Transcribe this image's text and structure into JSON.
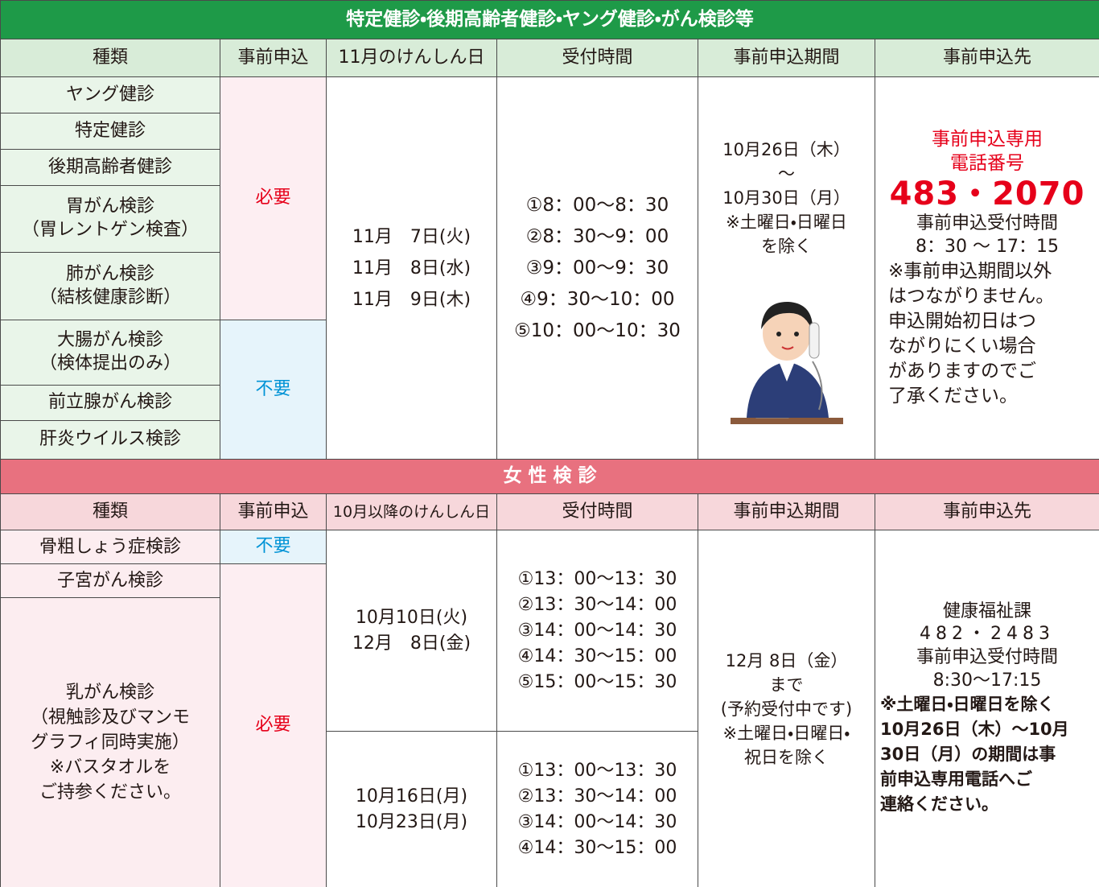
{
  "section1": {
    "title": "特定健診・後期高齢者健診・ヤング健診・がん検診等",
    "headers": [
      "種類",
      "事前申込",
      "11月のけんしん日",
      "受付時間",
      "事前申込期間",
      "事前申込先"
    ],
    "types": [
      [
        "ヤング健診"
      ],
      [
        "特定健診"
      ],
      [
        "後期高齢者健診"
      ],
      [
        "胃がん検診",
        "（胃レントゲン検査）"
      ],
      [
        "肺がん検診",
        "（結核健康診断）"
      ],
      [
        "大腸がん検診",
        "（検体提出のみ）"
      ],
      [
        "前立腺がん検診"
      ],
      [
        "肝炎ウイルス検診"
      ]
    ],
    "required": "必要",
    "not_required": "不要",
    "dates": [
      "11月　7日(火)",
      "11月　8日(水)",
      "11月　9日(木)"
    ],
    "times": [
      "①8：00～8：30",
      "②8：30～9：00",
      "③9：00～9：30",
      "④9：30～10：00",
      "⑤10：00～10：30"
    ],
    "period": [
      "10月26日（木）",
      "～",
      "10月30日（月）",
      "※土曜日・日曜日",
      "を除く"
    ],
    "contact": {
      "label": [
        "事前申込専用",
        "電話番号"
      ],
      "phone": "483・2070",
      "hours_label": "事前申込受付時間",
      "hours": "8：30 ～ 17：15",
      "note": [
        "※事前申込期間以外",
        "はつながりません。",
        "申込開始初日はつ",
        "ながりにくい場合",
        "がありますのでご",
        "了承ください。"
      ]
    }
  },
  "section2": {
    "title": "女 性 検 診",
    "headers": [
      "種類",
      "事前申込",
      "10月以降のけんしん日",
      "受付時間",
      "事前申込期間",
      "事前申込先"
    ],
    "types": [
      [
        "骨粗しょう症検診"
      ],
      [
        "子宮がん検診"
      ],
      [
        "乳がん検診",
        "（視触診及びマンモ",
        "グラフィ同時実施）",
        "※バスタオルを",
        "ご持参ください。"
      ]
    ],
    "not_required": "不要",
    "required": "必要",
    "dates_a": [
      "10月10日(火)",
      "12月　8日(金)"
    ],
    "times_a": [
      "①13：00～13：30",
      "②13：30～14：00",
      "③14：00～14：30",
      "④14：30～15：00",
      "⑤15：00～15：30"
    ],
    "dates_b": [
      "10月16日(月)",
      "10月23日(月)"
    ],
    "times_b": [
      "①13：00～13：30",
      "②13：30～14：00",
      "③14：00～14：30",
      "④14：30～15：00"
    ],
    "period": [
      "12月 8日（金）",
      "まで",
      "(予約受付中です)",
      "※土曜日・日曜日・",
      "祝日を除く"
    ],
    "contact": {
      "office": "健康福祉課",
      "phone": "482・2483",
      "hours_label": "事前申込受付時間",
      "hours": "8:30～17:15",
      "note": [
        "※土曜日・日曜日を除く",
        "10月26日（木）～10月",
        "30日（月）の期間は事",
        "前申込専用電話へご",
        "連絡ください。"
      ]
    }
  }
}
